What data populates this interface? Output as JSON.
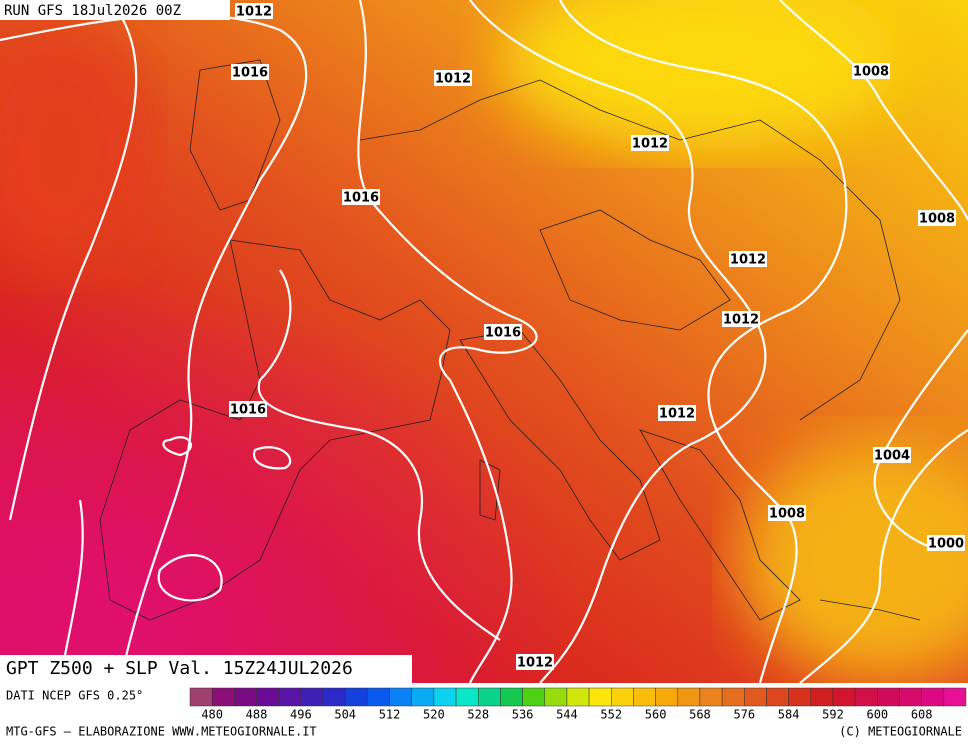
{
  "header": {
    "title": "RUN GFS 18Jul2026 00Z"
  },
  "isobar_labels": [
    "1012",
    "1016",
    "1012",
    "1008",
    "1012",
    "1016",
    "1008",
    "1012",
    "1012",
    "1016",
    "1016",
    "1012",
    "1004",
    "1008",
    "1000",
    "1012"
  ],
  "footer": {
    "field": "GPT Z500 + SLP Val. 15Z24JUL2026",
    "source": "DATI NCEP GFS 0.25°",
    "credit": "MTG-GFS — ELABORAZIONE WWW.METEOGIORNALE.IT",
    "copyright": "(C) METEOGIORNALE"
  },
  "colorbar": {
    "labels": [
      480,
      488,
      496,
      504,
      512,
      520,
      528,
      536,
      544,
      552,
      560,
      568,
      576,
      584,
      592,
      600,
      608
    ],
    "colors": [
      "#a0406e",
      "#8c0f78",
      "#7a0a82",
      "#6a0a96",
      "#5a14aa",
      "#4020b4",
      "#2a2ac8",
      "#1440dc",
      "#0a5af0",
      "#0a82f5",
      "#0aaaf5",
      "#0ad2f0",
      "#0ae6c8",
      "#0ad28c",
      "#14c850",
      "#50d214",
      "#96dc0a",
      "#d2e60a",
      "#fae60a",
      "#fad20a",
      "#fabe0a",
      "#f5aa0a",
      "#f09614",
      "#eb821e",
      "#e66e1e",
      "#e15a1e",
      "#dc461e",
      "#d7321e",
      "#d21e1e",
      "#d2142d",
      "#d20f46",
      "#d20a5a",
      "#d70a6e",
      "#dc0a82",
      "#e60f96"
    ]
  }
}
